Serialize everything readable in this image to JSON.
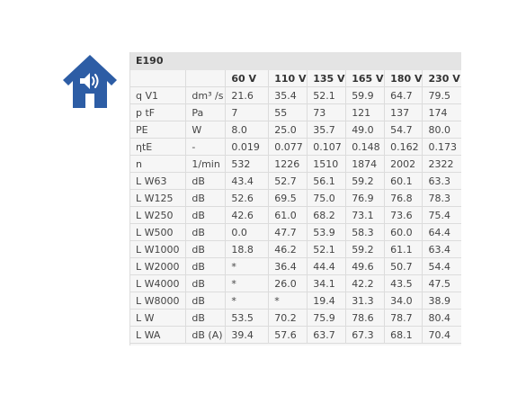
{
  "icon": {
    "name": "house-speaker-icon",
    "color": "#2d5da5"
  },
  "title": "E190",
  "columns": [
    "",
    "",
    "60 V",
    "110 V",
    "135 V",
    "165 V",
    "180 V",
    "230 V"
  ],
  "rows": [
    [
      "q V1",
      "dm³ /s",
      "21.6",
      "35.4",
      "52.1",
      "59.9",
      "64.7",
      "79.5"
    ],
    [
      "p tF",
      "Pa",
      "7",
      "55",
      "73",
      "121",
      "137",
      "174"
    ],
    [
      "PE",
      "W",
      "8.0",
      "25.0",
      "35.7",
      "49.0",
      "54.7",
      "80.0"
    ],
    [
      "ηtE",
      "-",
      "0.019",
      "0.077",
      "0.107",
      "0.148",
      "0.162",
      "0.173"
    ],
    [
      "n",
      "1/min",
      "532",
      "1226",
      "1510",
      "1874",
      "2002",
      "2322"
    ],
    [
      "L W63",
      "dB",
      "43.4",
      "52.7",
      "56.1",
      "59.2",
      "60.1",
      "63.3"
    ],
    [
      "L W125",
      "dB",
      "52.6",
      "69.5",
      "75.0",
      "76.9",
      "76.8",
      "78.3"
    ],
    [
      "L W250",
      "dB",
      "42.6",
      "61.0",
      "68.2",
      "73.1",
      "73.6",
      "75.4"
    ],
    [
      "L W500",
      "dB",
      "0.0",
      "47.7",
      "53.9",
      "58.3",
      "60.0",
      "64.4"
    ],
    [
      "L W1000",
      "dB",
      "18.8",
      "46.2",
      "52.1",
      "59.2",
      "61.1",
      "63.4"
    ],
    [
      "L W2000",
      "dB",
      "*",
      "36.4",
      "44.4",
      "49.6",
      "50.7",
      "54.4"
    ],
    [
      "L W4000",
      "dB",
      "*",
      "26.0",
      "34.1",
      "42.2",
      "43.5",
      "47.5"
    ],
    [
      "L W8000",
      "dB",
      "*",
      "*",
      "19.4",
      "31.3",
      "34.0",
      "38.9"
    ],
    [
      "L W",
      "dB",
      "53.5",
      "70.2",
      "75.9",
      "78.6",
      "78.7",
      "80.4"
    ],
    [
      "L WA",
      "dB (A)",
      "39.4",
      "57.6",
      "63.7",
      "67.3",
      "68.1",
      "70.4"
    ]
  ]
}
